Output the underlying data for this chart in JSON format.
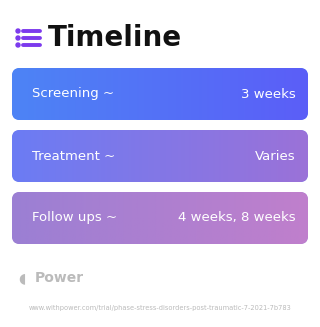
{
  "title": "Timeline",
  "title_fontsize": 20,
  "title_color": "#111111",
  "icon_color": "#7C3AED",
  "bg_color": "#ffffff",
  "rows": [
    {
      "left_label": "Screening ~",
      "right_label": "3 weeks",
      "gradient_start": "#4D84F5",
      "gradient_end": "#5B5EF8",
      "text_color": "#ffffff"
    },
    {
      "left_label": "Treatment ~",
      "right_label": "Varies",
      "gradient_start": "#6B7CF4",
      "gradient_end": "#9B72D8",
      "text_color": "#ffffff"
    },
    {
      "left_label": "Follow ups ~",
      "right_label": "4 weeks, 8 weeks",
      "gradient_start": "#9B7FD4",
      "gradient_end": "#C07FCC",
      "text_color": "#ffffff"
    }
  ],
  "watermark_text": "Power",
  "watermark_color": "#bbbbbb",
  "url_text": "www.withpower.com/trial/phase-stress-disorders-post-traumatic-7-2021-7b783",
  "url_color": "#bbbbbb",
  "url_fontsize": 4.8,
  "watermark_fontsize": 10,
  "label_fontsize": 9.5
}
